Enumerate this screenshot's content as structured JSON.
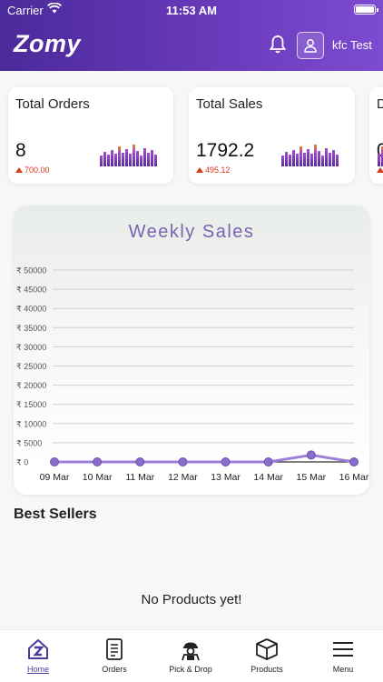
{
  "status_bar": {
    "carrier": "Carrier",
    "time": "11:53 AM"
  },
  "header": {
    "logo": "Zomy",
    "username": "kfc Test",
    "icons": [
      "bell-icon",
      "user-icon"
    ]
  },
  "stats": [
    {
      "title": "Total Orders",
      "value": "8",
      "delta": "700.00"
    },
    {
      "title": "Total Sales",
      "value": "1792.2",
      "delta": "495.12"
    },
    {
      "title": "D",
      "value": "0",
      "delta": ""
    }
  ],
  "chart_data": {
    "type": "line",
    "title": "Weekly Sales",
    "categories": [
      "09 Mar",
      "10 Mar",
      "11 Mar",
      "12 Mar",
      "13 Mar",
      "14 Mar",
      "15 Mar",
      "16 Mar"
    ],
    "series": [
      {
        "values": [
          0,
          0,
          0,
          0,
          0,
          0,
          1792.2,
          0
        ]
      }
    ],
    "ylim": [
      0,
      50000
    ],
    "y_ticks": [
      "₹ 0",
      "₹ 5000",
      "₹ 10000",
      "₹ 15000",
      "₹ 20000",
      "₹ 25000",
      "₹ 30000",
      "₹ 35000",
      "₹ 40000",
      "₹ 45000",
      "₹ 50000"
    ],
    "grid": true,
    "line_color": "#9c7fd8",
    "point_color": "#8a6cc9"
  },
  "best_sellers": {
    "title": "Best Sellers",
    "empty_text": "No Products yet!"
  },
  "tabs": [
    {
      "label": "Home",
      "icon": "home-icon",
      "active": true
    },
    {
      "label": "Orders",
      "icon": "orders-icon",
      "active": false
    },
    {
      "label": "Pick & Drop",
      "icon": "pick-drop-icon",
      "active": false
    },
    {
      "label": "Products",
      "icon": "products-icon",
      "active": false
    },
    {
      "label": "Menu",
      "icon": "menu-icon",
      "active": false
    }
  ],
  "colors": {
    "brand_dark": "#4b2a9a",
    "brand_light": "#7d4bcf",
    "accent_text": "#7a62b4",
    "delta_red": "#d9391c"
  }
}
